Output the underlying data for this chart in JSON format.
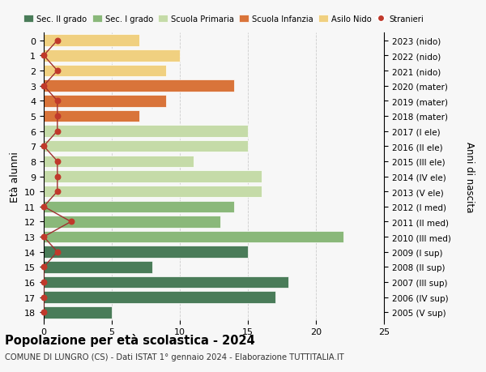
{
  "ages": [
    0,
    1,
    2,
    3,
    4,
    5,
    6,
    7,
    8,
    9,
    10,
    11,
    12,
    13,
    14,
    15,
    16,
    17,
    18
  ],
  "right_labels": [
    "2023 (nido)",
    "2022 (nido)",
    "2021 (nido)",
    "2020 (mater)",
    "2019 (mater)",
    "2018 (mater)",
    "2017 (I ele)",
    "2016 (II ele)",
    "2015 (III ele)",
    "2014 (IV ele)",
    "2013 (V ele)",
    "2012 (I med)",
    "2011 (II med)",
    "2010 (III med)",
    "2009 (I sup)",
    "2008 (II sup)",
    "2007 (III sup)",
    "2006 (IV sup)",
    "2005 (V sup)"
  ],
  "bar_values": [
    7,
    10,
    9,
    14,
    9,
    7,
    15,
    15,
    11,
    16,
    16,
    14,
    13,
    22,
    15,
    8,
    18,
    17,
    5
  ],
  "bar_colors": [
    "#f0d080",
    "#f0d080",
    "#f0d080",
    "#d9743a",
    "#d9743a",
    "#d9743a",
    "#c5dba8",
    "#c5dba8",
    "#c5dba8",
    "#c5dba8",
    "#c5dba8",
    "#8ab87a",
    "#8ab87a",
    "#8ab87a",
    "#4a7c59",
    "#4a7c59",
    "#4a7c59",
    "#4a7c59",
    "#4a7c59"
  ],
  "stranieri_values": [
    1,
    0,
    1,
    0,
    1,
    1,
    1,
    0,
    1,
    1,
    1,
    0,
    2,
    0,
    1,
    0,
    0,
    0,
    0
  ],
  "legend_labels": [
    "Sec. II grado",
    "Sec. I grado",
    "Scuola Primaria",
    "Scuola Infanzia",
    "Asilo Nido",
    "Stranieri"
  ],
  "legend_colors": [
    "#4a7c59",
    "#8ab87a",
    "#c5dba8",
    "#d9743a",
    "#f0d080",
    "#c0392b"
  ],
  "ylabel_label": "Età alunni",
  "right_ylabel": "Anni di nascita",
  "title": "Popolazione per età scolastica - 2024",
  "subtitle": "COMUNE DI LUNGRO (CS) - Dati ISTAT 1° gennaio 2024 - Elaborazione TUTTITALIA.IT",
  "xlim": [
    0,
    25
  ],
  "background_color": "#f7f7f7",
  "grid_color": "#cccccc",
  "stranieri_color": "#c0392b",
  "stranieri_line_color": "#a03030"
}
